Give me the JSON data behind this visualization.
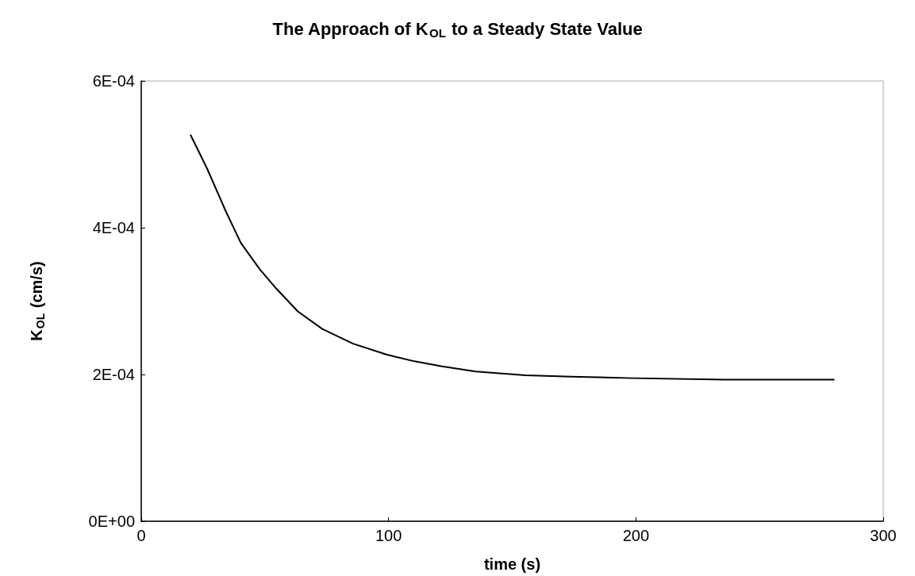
{
  "chart_data": {
    "type": "line",
    "title": "The Approach of K$_{OL}$ to a Steady State Value",
    "xlabel": "time (s)",
    "ylabel": "K$_{OL}$ (cm/s)",
    "series": [
      {
        "color": "#000000",
        "x": [
          20,
          26.7,
          34.1,
          37.2,
          40.3,
          47.8,
          54.6,
          63.3,
          73.2,
          85.6,
          99.3,
          110.4,
          121.6,
          135.2,
          155.3,
          173.9,
          198.7,
          235.9,
          280
        ],
        "values": [
          0.000526,
          0.00048,
          0.000423,
          0.000401,
          0.000379,
          0.000344,
          0.000317,
          0.000286,
          0.000262,
          0.000242,
          0.000227,
          0.000218,
          0.000211,
          0.000204,
          0.000199,
          0.000197,
          0.000195,
          0.000193,
          0.000193
        ]
      }
    ],
    "xlim": [
      0,
      300
    ],
    "xticks": [
      0,
      100,
      200,
      300
    ],
    "ylim": [
      0,
      0.0006
    ],
    "yticks": [
      {
        "value": 0,
        "label": "0E+00"
      },
      {
        "value": 0.0002,
        "label": "2E-04"
      },
      {
        "value": 0.0004,
        "label": "4E-04"
      },
      {
        "value": 0.0006,
        "label": "6E-04"
      }
    ],
    "grid": false,
    "marker": "none",
    "line_style": "solid"
  }
}
